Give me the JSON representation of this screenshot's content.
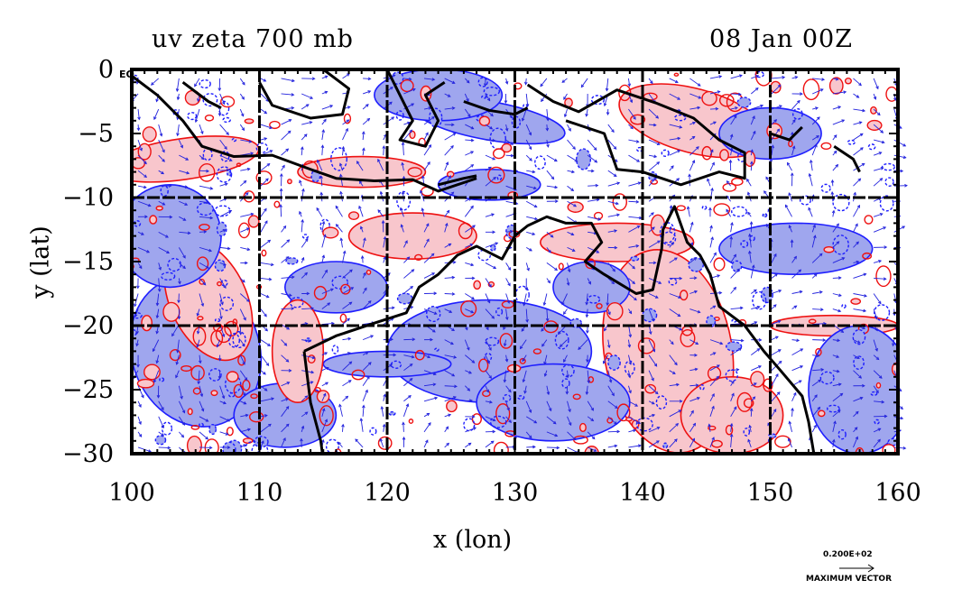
{
  "map": {
    "title": "uv zeta 700 mb",
    "time_label": "08 Jan 00Z",
    "xlabel": "x (lon)",
    "ylabel": "y (lat)",
    "x_ticks": [
      "100",
      "110",
      "120",
      "130",
      "140",
      "150",
      "160"
    ],
    "y_ticks": [
      "0",
      "−5",
      "−10",
      "−15",
      "−20",
      "−25",
      "−30"
    ],
    "equator_marker": "EQ",
    "lon_range": [
      100,
      160
    ],
    "lat_range": [
      -30,
      0
    ],
    "grid_lon_lines": [
      110,
      120,
      130,
      140,
      150
    ],
    "grid_lat_lines": [
      -10,
      -20
    ],
    "colors": {
      "negative_vorticity_fill": "#9fa6ee",
      "positive_vorticity_fill": "#f8c6cc",
      "negative_contour": "#1e1eff",
      "positive_contour": "#ee1111",
      "wind_vectors": "#2222dd",
      "coastline": "#000000",
      "grid": "#000000"
    }
  },
  "legend": {
    "vector_value": "0.200E+02",
    "vector_caption": "MAXIMUM VECTOR"
  }
}
